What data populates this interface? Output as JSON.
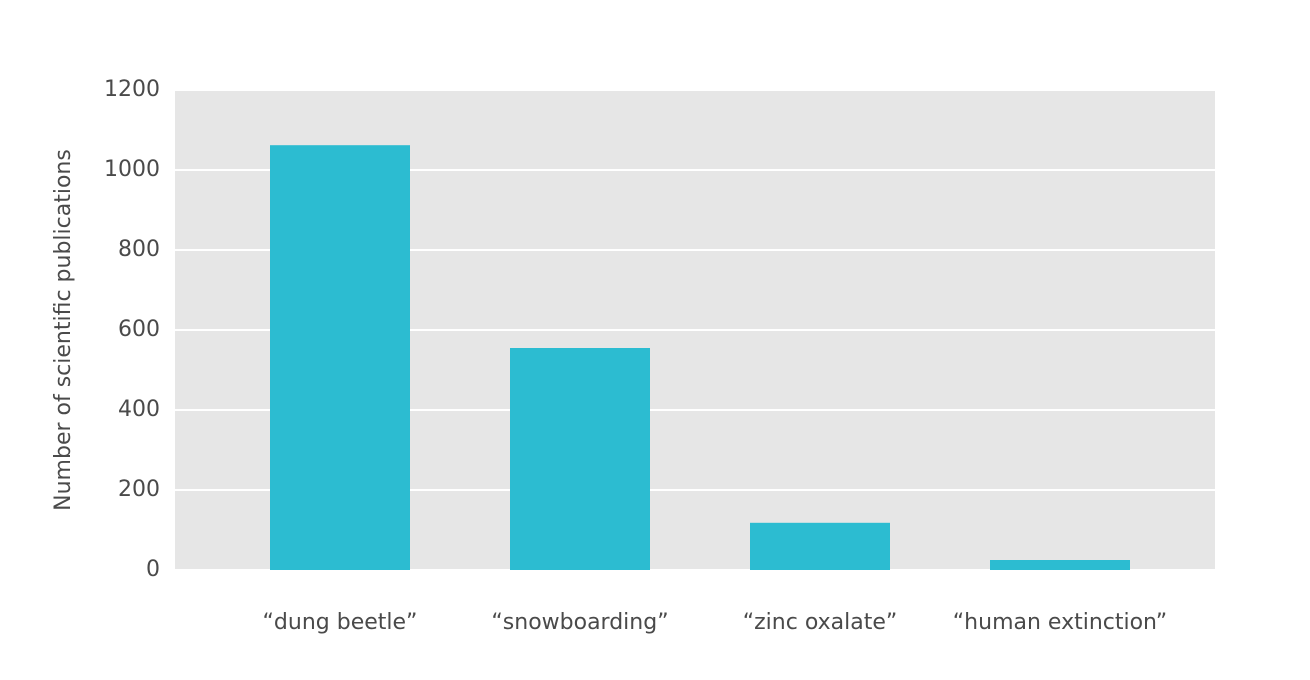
{
  "chart_data": {
    "type": "bar",
    "y_label": "Number of scientific publications",
    "categories": [
      "“dung beetle”",
      "“snowboarding”",
      "“zinc oxalate”",
      "“human extinction”"
    ],
    "values": [
      1062,
      555,
      118,
      25
    ],
    "color": "#2cbcd1",
    "ylim": [
      0,
      1200
    ],
    "yticks": [
      0,
      200,
      400,
      600,
      800,
      1000,
      1200
    ],
    "grid": true
  }
}
